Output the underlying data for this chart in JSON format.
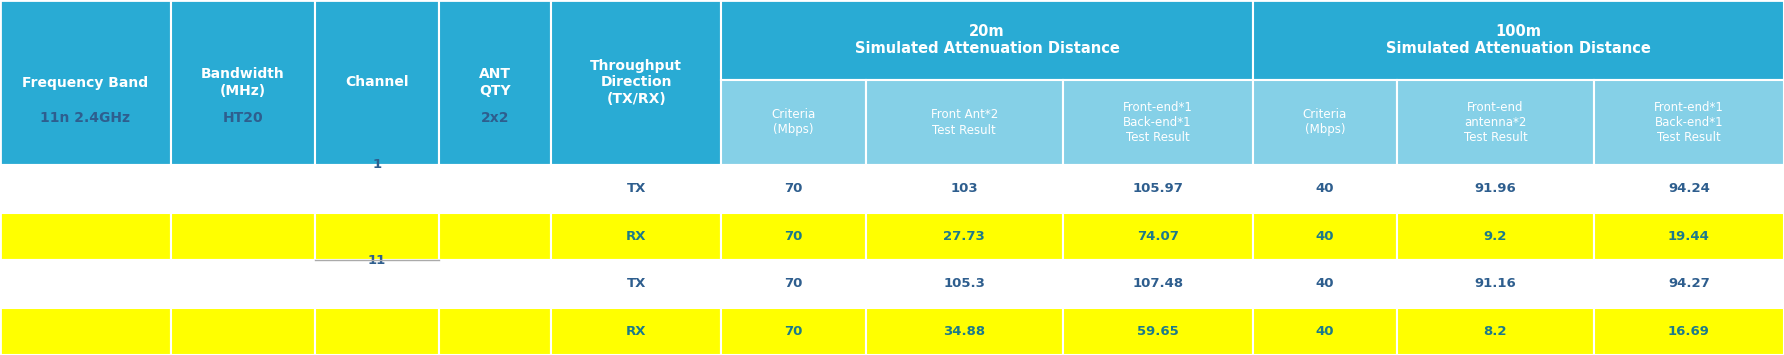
{
  "title_header": {
    "col1": "Frequency Band",
    "col2": "Bandwidth\n(MHz)",
    "col3": "Channel",
    "col4": "ANT\nQTY",
    "col5": "Throughput\nDirection\n(TX/RX)",
    "group1_title": "20m\nSimulated Attenuation Distance",
    "group2_title": "100m\nSimulated Attenuation Distance"
  },
  "sub_headers": {
    "g1_c1": "Criteria\n(Mbps)",
    "g1_c2": "Front Ant*2\nTest Result",
    "g1_c3": "Front-end*1\nBack-end*1\nTest Result",
    "g2_c1": "Criteria\n(Mbps)",
    "g2_c2": "Front-end\nantenna*2\nTest Result",
    "g2_c3": "Front-end*1\nBack-end*1\nTest Result"
  },
  "rows": [
    {
      "freq": "11n 2.4GHz",
      "bw": "HT20",
      "channel": "1",
      "ant": "2x2",
      "dir": "TX",
      "g1_crit": "70",
      "g1_front": "103",
      "g1_backend": "105.97",
      "g2_crit": "40",
      "g2_front": "91.96",
      "g2_backend": "94.24",
      "highlight": false,
      "show_freq": false,
      "show_bw": false,
      "show_channel": true,
      "show_ant": false
    },
    {
      "freq": "11n 2.4GHz",
      "bw": "HT20",
      "channel": "1",
      "ant": "2x2",
      "dir": "RX",
      "g1_crit": "70",
      "g1_front": "27.73",
      "g1_backend": "74.07",
      "g2_crit": "40",
      "g2_front": "9.2",
      "g2_backend": "19.44",
      "highlight": true,
      "show_freq": false,
      "show_bw": false,
      "show_channel": false,
      "show_ant": false
    },
    {
      "freq": "11n 2.4GHz",
      "bw": "HT20",
      "channel": "11",
      "ant": "2x2",
      "dir": "TX",
      "g1_crit": "70",
      "g1_front": "105.3",
      "g1_backend": "107.48",
      "g2_crit": "40",
      "g2_front": "91.16",
      "g2_backend": "94.27",
      "highlight": false,
      "show_freq": false,
      "show_bw": false,
      "show_channel": true,
      "show_ant": false
    },
    {
      "freq": "11n 2.4GHz",
      "bw": "HT20",
      "channel": "11",
      "ant": "2x2",
      "dir": "RX",
      "g1_crit": "70",
      "g1_front": "34.88",
      "g1_backend": "59.65",
      "g2_crit": "40",
      "g2_front": "8.2",
      "g2_backend": "16.69",
      "highlight": true,
      "show_freq": true,
      "show_bw": true,
      "show_channel": false,
      "show_ant": true
    }
  ],
  "colors": {
    "header_dark": "#29ABD4",
    "header_light": "#85D0E7",
    "row_light": "#D6EEF7",
    "row_white": "#FFFFFF",
    "highlight_yellow": "#FFFF00",
    "border": "#FFFFFF",
    "text_header": "#FFFFFF",
    "text_data_dark": "#2E5E8E",
    "text_data_teal": "#1D7A8A"
  }
}
